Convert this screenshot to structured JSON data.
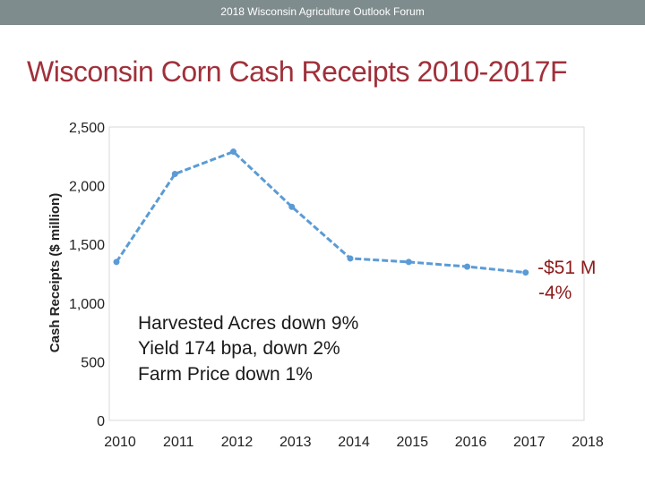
{
  "header": {
    "text": "2018 Wisconsin Agriculture Outlook Forum",
    "bar_color": "#7f8c8d"
  },
  "slide": {
    "title": "Wisconsin Corn Cash Receipts 2010-2017F",
    "title_color": "#a0303a"
  },
  "chart_data": {
    "type": "line",
    "title": "Wisconsin Corn Cash Receipts 2010-2017F",
    "ylabel": "Cash Receipts ($ million)",
    "xlabel": "",
    "x_ticks": [
      "2010",
      "2011",
      "2012",
      "2013",
      "2014",
      "2015",
      "2016",
      "2017",
      "2018"
    ],
    "y_ticks": [
      "0",
      "500",
      "1,000",
      "1,500",
      "2,000",
      "2,500"
    ],
    "xlim": [
      2010,
      2018
    ],
    "ylim": [
      0,
      2500
    ],
    "grid": false,
    "series": [
      {
        "color": "#5b9bd5",
        "style": "dashed-with-markers",
        "x": [
          2010,
          2011,
          2012,
          2013,
          2014,
          2015,
          2016,
          2017
        ],
        "values": [
          1350,
          2100,
          2290,
          1820,
          1380,
          1350,
          1310,
          1260
        ]
      }
    ],
    "callout": {
      "lines": [
        "-$51 M",
        "-4%"
      ],
      "color": "#8b1a1a"
    },
    "annotation": {
      "lines": [
        "Harvested Acres down 9%",
        "Yield 174 bpa, down 2%",
        "Farm Price down 1%"
      ]
    }
  }
}
